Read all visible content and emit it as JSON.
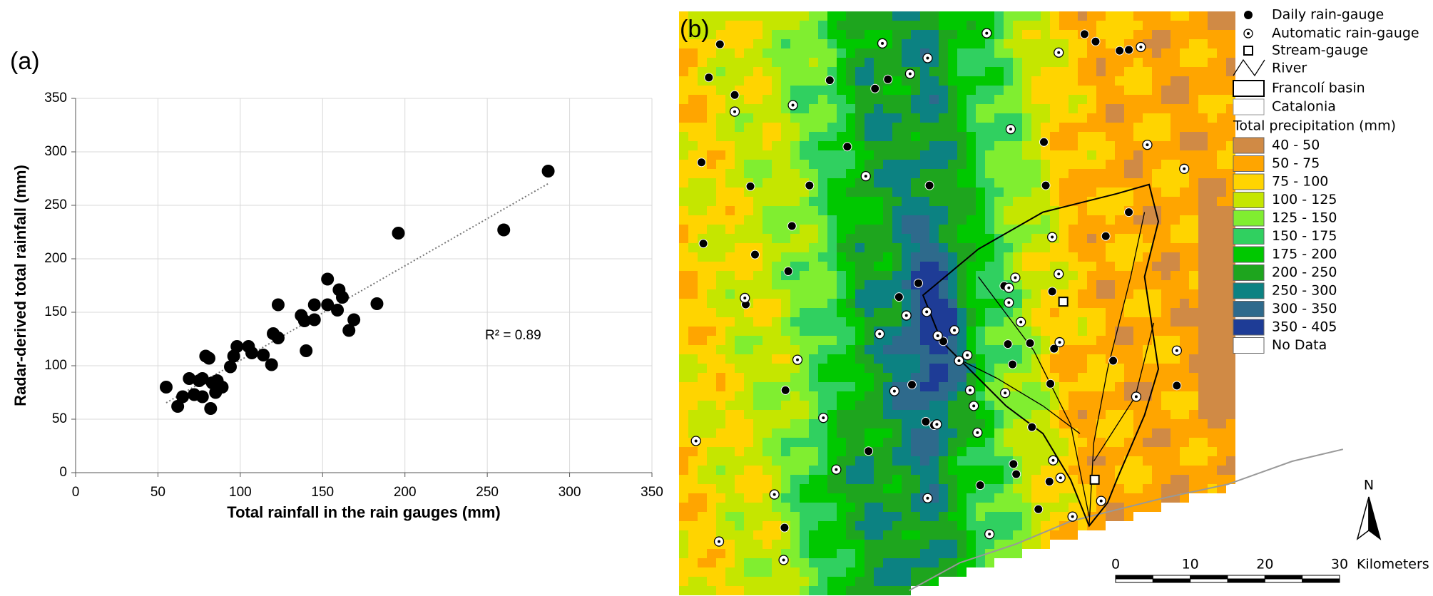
{
  "chart_data": [
    {
      "type": "scatter",
      "panel_label": "(a)",
      "x_label": "Total rainfall in the rain gauges (mm)",
      "y_label": "Radar-derived total rainfall (mm)",
      "annotation": "R² = 0.89",
      "color": "#000000",
      "grid": true,
      "trendline": true,
      "xlim": [
        0,
        350
      ],
      "ylim": [
        0,
        350
      ],
      "xticks": [
        0,
        50,
        100,
        150,
        200,
        250,
        300,
        350
      ],
      "yticks": [
        0,
        50,
        100,
        150,
        200,
        250,
        300,
        350
      ],
      "x": [
        55,
        62,
        65,
        69,
        72,
        75,
        77,
        77,
        79,
        81,
        82,
        83,
        85,
        86,
        89,
        94,
        96,
        98,
        105,
        107,
        114,
        119,
        120,
        123,
        123,
        137,
        139,
        140,
        145,
        145,
        153,
        153,
        159,
        160,
        162,
        166,
        169,
        183,
        196,
        260,
        287
      ],
      "values": [
        80,
        62,
        71,
        88,
        73,
        86,
        88,
        71,
        109,
        107,
        60,
        84,
        75,
        86,
        80,
        99,
        109,
        118,
        118,
        112,
        110,
        101,
        130,
        126,
        157,
        147,
        142,
        114,
        143,
        157,
        181,
        157,
        152,
        171,
        164,
        133,
        143,
        158,
        224,
        227,
        282
      ]
    }
  ],
  "map": {
    "panel_label": "(b)",
    "symbols": [
      "Daily rain-gauge",
      "Automatic rain-gauge",
      "Stream-gauge",
      "River",
      "Francolí basin",
      "Catalonia"
    ],
    "legend_title": "Total precipitation (mm)",
    "classes": [
      {
        "label": "40 - 50",
        "color": "#d08a45"
      },
      {
        "label": "50 - 75",
        "color": "#ffa500"
      },
      {
        "label": "75 - 100",
        "color": "#ffd400"
      },
      {
        "label": "100 - 125",
        "color": "#c5e600"
      },
      {
        "label": "125 - 150",
        "color": "#80ee30"
      },
      {
        "label": "150 - 175",
        "color": "#30d060"
      },
      {
        "label": "175 - 200",
        "color": "#00c800"
      },
      {
        "label": "200 - 250",
        "color": "#1ea51e"
      },
      {
        "label": "250 - 300",
        "color": "#0c8282"
      },
      {
        "label": "300 - 350",
        "color": "#2e6a8c"
      },
      {
        "label": "350 - 405",
        "color": "#1e3c96"
      },
      {
        "label": "No Data",
        "color": "#ffffff"
      }
    ],
    "scale_labels": [
      "0",
      "10",
      "20",
      "30"
    ],
    "scale_unit": "Kilometers",
    "north": "N"
  }
}
